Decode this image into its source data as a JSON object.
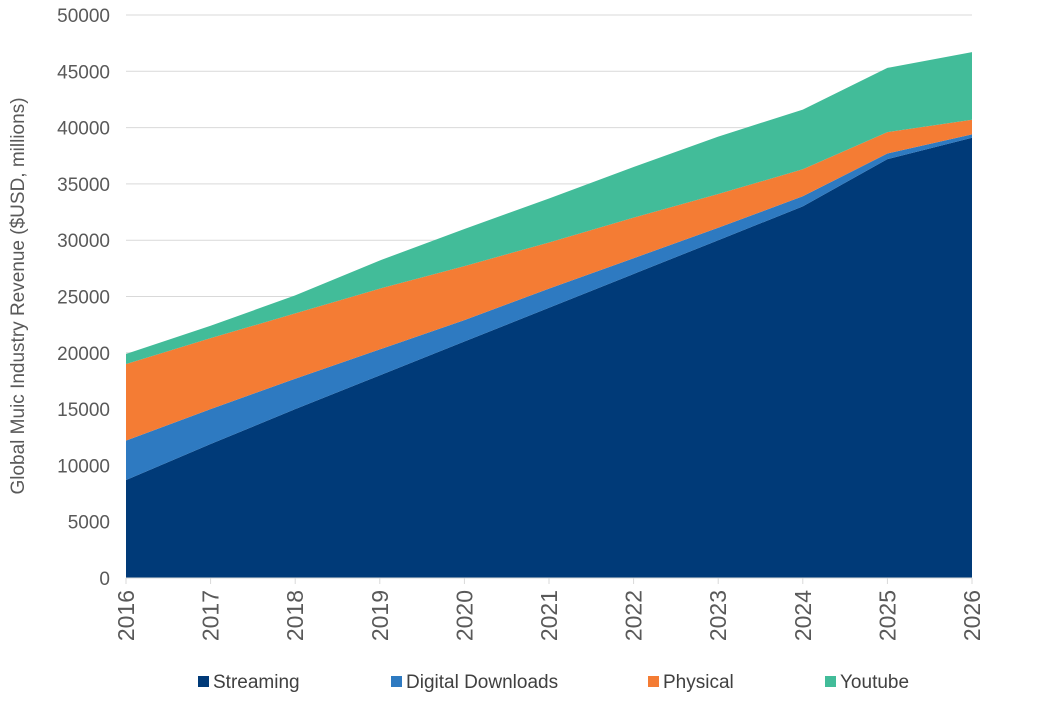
{
  "chart_data": {
    "type": "area",
    "stacked": true,
    "title": "",
    "xlabel": "",
    "ylabel": "Global Muic Industry Revenue ($USD, millions)",
    "ylim": [
      0,
      50000
    ],
    "y_ticks": [
      0,
      5000,
      10000,
      15000,
      20000,
      25000,
      30000,
      35000,
      40000,
      45000,
      50000
    ],
    "x": [
      "2016",
      "2017",
      "2018",
      "2019",
      "2020",
      "2021",
      "2022",
      "2023",
      "2024",
      "2025",
      "2026"
    ],
    "grid": true,
    "legend_position": "bottom",
    "series": [
      {
        "name": "Streaming",
        "color": "#003A78",
        "values": [
          8700,
          11900,
          15000,
          18000,
          21000,
          24000,
          27000,
          30000,
          33000,
          37200,
          39100
        ]
      },
      {
        "name": "Digital Downloads",
        "color": "#2E7AC1",
        "values": [
          3500,
          3100,
          2700,
          2300,
          1900,
          1700,
          1400,
          1100,
          900,
          500,
          300
        ]
      },
      {
        "name": "Physical",
        "color": "#F47C34",
        "values": [
          6800,
          6300,
          5800,
          5400,
          4800,
          4100,
          3600,
          3000,
          2400,
          1900,
          1300
        ]
      },
      {
        "name": "Youtube",
        "color": "#42BC99",
        "values": [
          900,
          1100,
          1600,
          2500,
          3300,
          3900,
          4500,
          5100,
          5300,
          5700,
          6000
        ]
      }
    ]
  }
}
